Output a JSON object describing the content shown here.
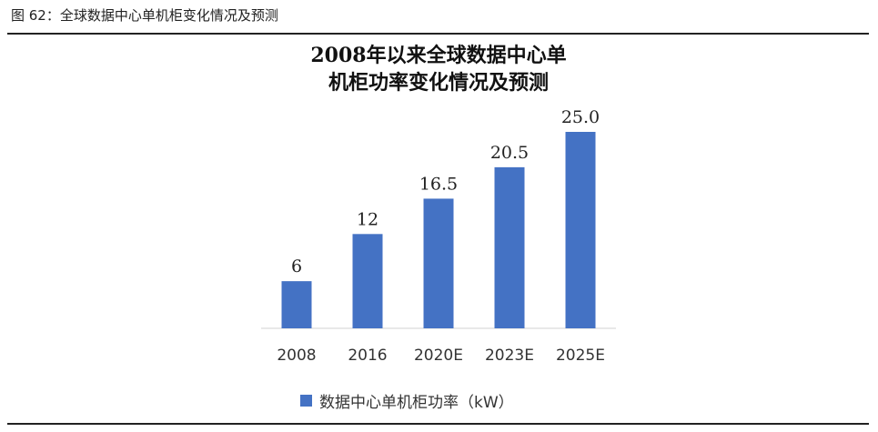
{
  "caption": "图 62：全球数据中心单机柜变化情况及预测",
  "chart_data": {
    "type": "bar",
    "title_line1": "2008年以来全球数据中心单",
    "title_line2": "机柜功率变化情况及预测",
    "categories": [
      "2008",
      "2016",
      "2020E",
      "2023E",
      "2025E"
    ],
    "series": [
      {
        "name": "数据中心单机柜功率（kW）",
        "values": [
          6,
          12,
          16.5,
          20.5,
          25.0
        ],
        "labels": [
          "6",
          "12",
          "16.5",
          "20.5",
          "25.0"
        ],
        "color": "#4472C4"
      }
    ],
    "ylim": [
      0,
      25
    ],
    "grid": false,
    "legend_position": "bottom"
  }
}
